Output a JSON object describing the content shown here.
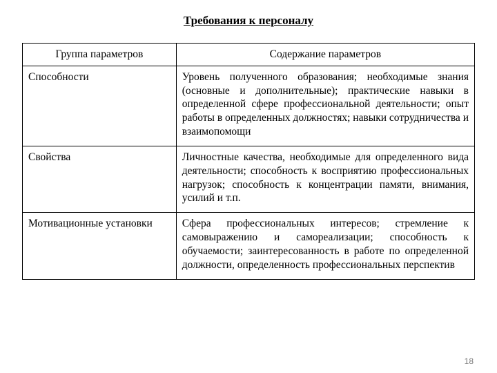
{
  "title": "Требования к персоналу",
  "table": {
    "header": {
      "col1": "Группа параметров",
      "col2": "Содержание параметров"
    },
    "rows": [
      {
        "group": "Способности",
        "content": "Уровень полученного образования; необходимые знания (основные и дополнительные); практические навыки в определенной сфере профессиональной деятельности; опыт работы в определенных должностях; навыки сотрудничества и взаимопомощи"
      },
      {
        "group": "Свойства",
        "content": "Личностные качества, необходимые для определенного вида деятельности; способность к восприятию профессиональных нагрузок; способность к концентрации памяти, внимания, усилий и т.п."
      },
      {
        "group": "Мотивационные установки",
        "content": "Сфера профессиональных интересов; стремление к самовыражению и самореализации; способность к обучаемости; заинтересованность в работе по определенной должности, определенность профессиональных перспектив"
      }
    ]
  },
  "page_number": "18"
}
